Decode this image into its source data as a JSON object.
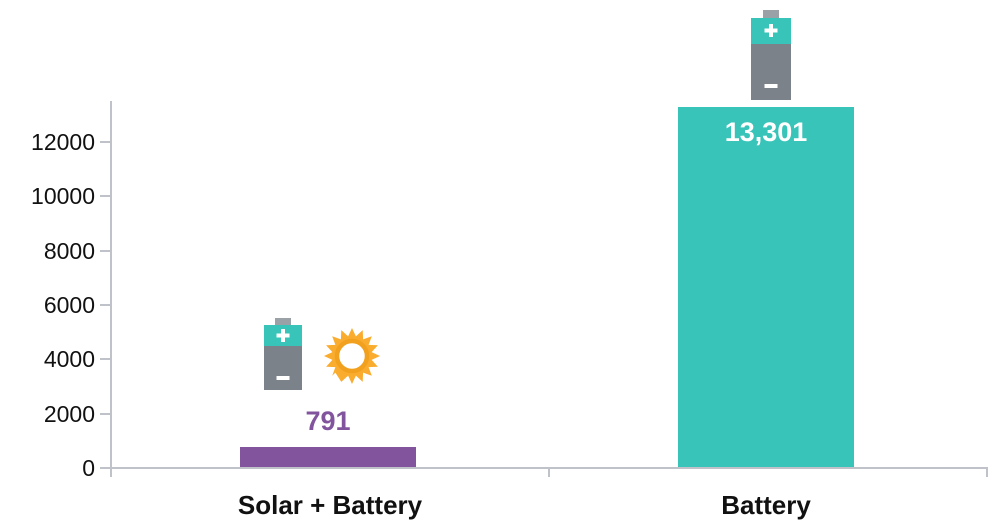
{
  "chart_data": {
    "type": "bar",
    "title": "",
    "categories": [
      "Solar + Battery",
      "Battery"
    ],
    "values": [
      791,
      13301
    ],
    "value_labels": [
      "791",
      "13,301"
    ],
    "value_label_colors": [
      "#82549e",
      "#ffffff"
    ],
    "value_label_positions": [
      "above",
      "inside"
    ],
    "bar_colors": [
      "#82549e",
      "#38c4b9"
    ],
    "xlabel": "",
    "ylabel": "",
    "yticks": [
      0,
      2000,
      4000,
      6000,
      8000,
      10000,
      12000
    ],
    "ylim": [
      0,
      13500
    ],
    "grid": false,
    "legend": "none",
    "annotations": [
      {
        "category": "Solar + Battery",
        "icons": [
          "battery-icon",
          "sun-icon"
        ]
      },
      {
        "category": "Battery",
        "icons": [
          "battery-icon"
        ]
      }
    ]
  },
  "colors": {
    "axis": "#bfc3c9",
    "battery-teal": "#38c4b9",
    "battery-gray": "#7b8289",
    "battery-nub": "#9ba2a7",
    "sun-ray": "#f9ac2e",
    "sun-ring": "#f2a11e"
  }
}
